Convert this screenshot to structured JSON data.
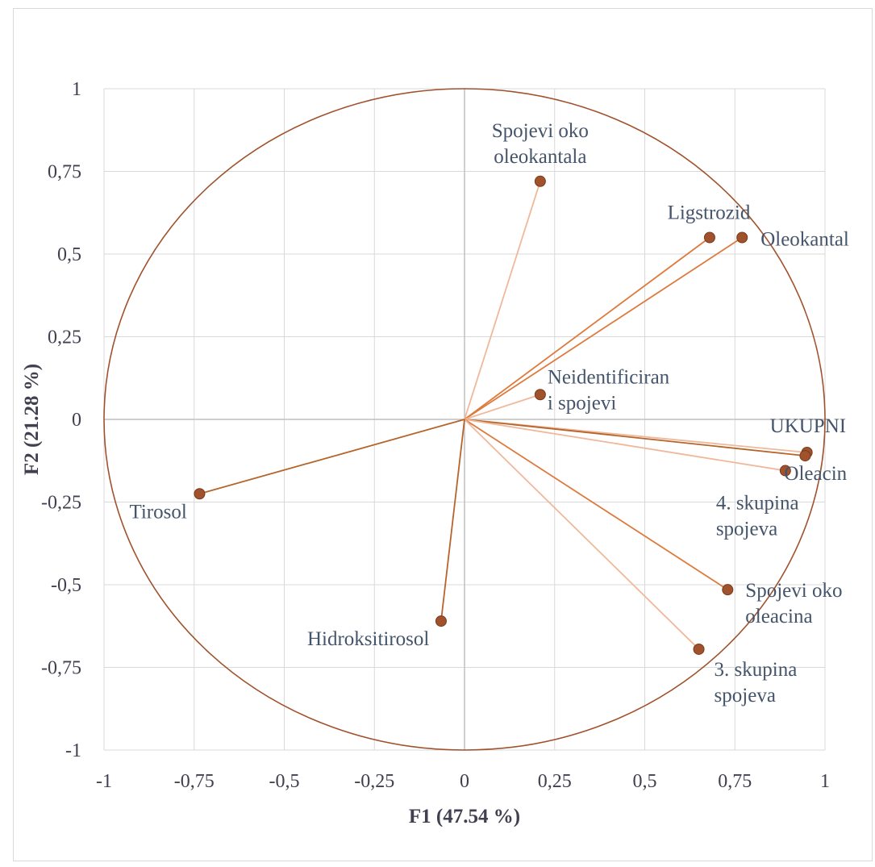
{
  "chart_data": {
    "type": "scatter",
    "subtype": "pca-correlation-circle",
    "title": "",
    "xlabel": "F1 (47.54 %)",
    "ylabel": "F2 (21.28 %)",
    "xlim": [
      -1,
      1
    ],
    "ylim": [
      -1,
      1
    ],
    "x_ticks": [
      -1,
      -0.75,
      -0.5,
      -0.25,
      0,
      0.25,
      0.5,
      0.75,
      1
    ],
    "x_tick_labels": [
      "-1",
      "-0,75",
      "-0,5",
      "-0,25",
      "0",
      "0,25",
      "0,5",
      "0,75",
      "1"
    ],
    "y_ticks": [
      1,
      0.75,
      0.5,
      0.25,
      0,
      -0.25,
      -0.5,
      -0.75,
      -1
    ],
    "y_tick_labels": [
      "1",
      "0,75",
      "0,5",
      "0,25",
      "0",
      "-0,25",
      "-0,5",
      "-0,75",
      "-1"
    ],
    "grid": true,
    "unit_circle": true,
    "colors": {
      "circle": "#a0522d",
      "marker": "#a0522d",
      "marker_edge": "#7a3a1a",
      "grid": "#d9d9d9",
      "axis": "#bfbfbf",
      "vector_dark": "#b5652b",
      "vector_mid": "#de7a3c",
      "vector_light": "#f0b89a"
    },
    "points": [
      {
        "name": "Spojevi oko oleokantala",
        "lines": [
          "Spojevi oko",
          "oleokantala"
        ],
        "x": 0.21,
        "y": 0.72,
        "shade": "vector_light"
      },
      {
        "name": "Ligstrozid",
        "lines": [
          "Ligstrozid"
        ],
        "x": 0.68,
        "y": 0.55,
        "shade": "vector_mid"
      },
      {
        "name": "Oleokantal",
        "lines": [
          "Oleokantal"
        ],
        "x": 0.77,
        "y": 0.55,
        "shade": "vector_mid"
      },
      {
        "name": "Neidentificirani spojevi",
        "lines": [
          "Neidentificiran",
          "i spojevi"
        ],
        "x": 0.21,
        "y": 0.075,
        "shade": "vector_light"
      },
      {
        "name": "UKUPNI",
        "lines": [
          "UKUPNI"
        ],
        "x": 0.95,
        "y": -0.1,
        "shade": "vector_light"
      },
      {
        "name": "Oleacin",
        "lines": [
          "Oleacin"
        ],
        "x": 0.945,
        "y": -0.11,
        "shade": "vector_dark"
      },
      {
        "name": "4. skupina spojeva",
        "lines": [
          "4. skupina",
          "spojeva"
        ],
        "x": 0.89,
        "y": -0.155,
        "shade": "vector_light"
      },
      {
        "name": "Spojevi oko oleacina",
        "lines": [
          "Spojevi oko",
          "oleacina"
        ],
        "x": 0.73,
        "y": -0.515,
        "shade": "vector_mid"
      },
      {
        "name": "3. skupina spojeva",
        "lines": [
          "3. skupina",
          "spojeva"
        ],
        "x": 0.65,
        "y": -0.695,
        "shade": "vector_light"
      },
      {
        "name": "Tirosol",
        "lines": [
          "Tirosol"
        ],
        "x": -0.735,
        "y": -0.225,
        "shade": "vector_dark"
      },
      {
        "name": "Hidroksitirosol",
        "lines": [
          "Hidroksitirosol"
        ],
        "x": -0.065,
        "y": -0.61,
        "shade": "vector_dark"
      }
    ]
  }
}
